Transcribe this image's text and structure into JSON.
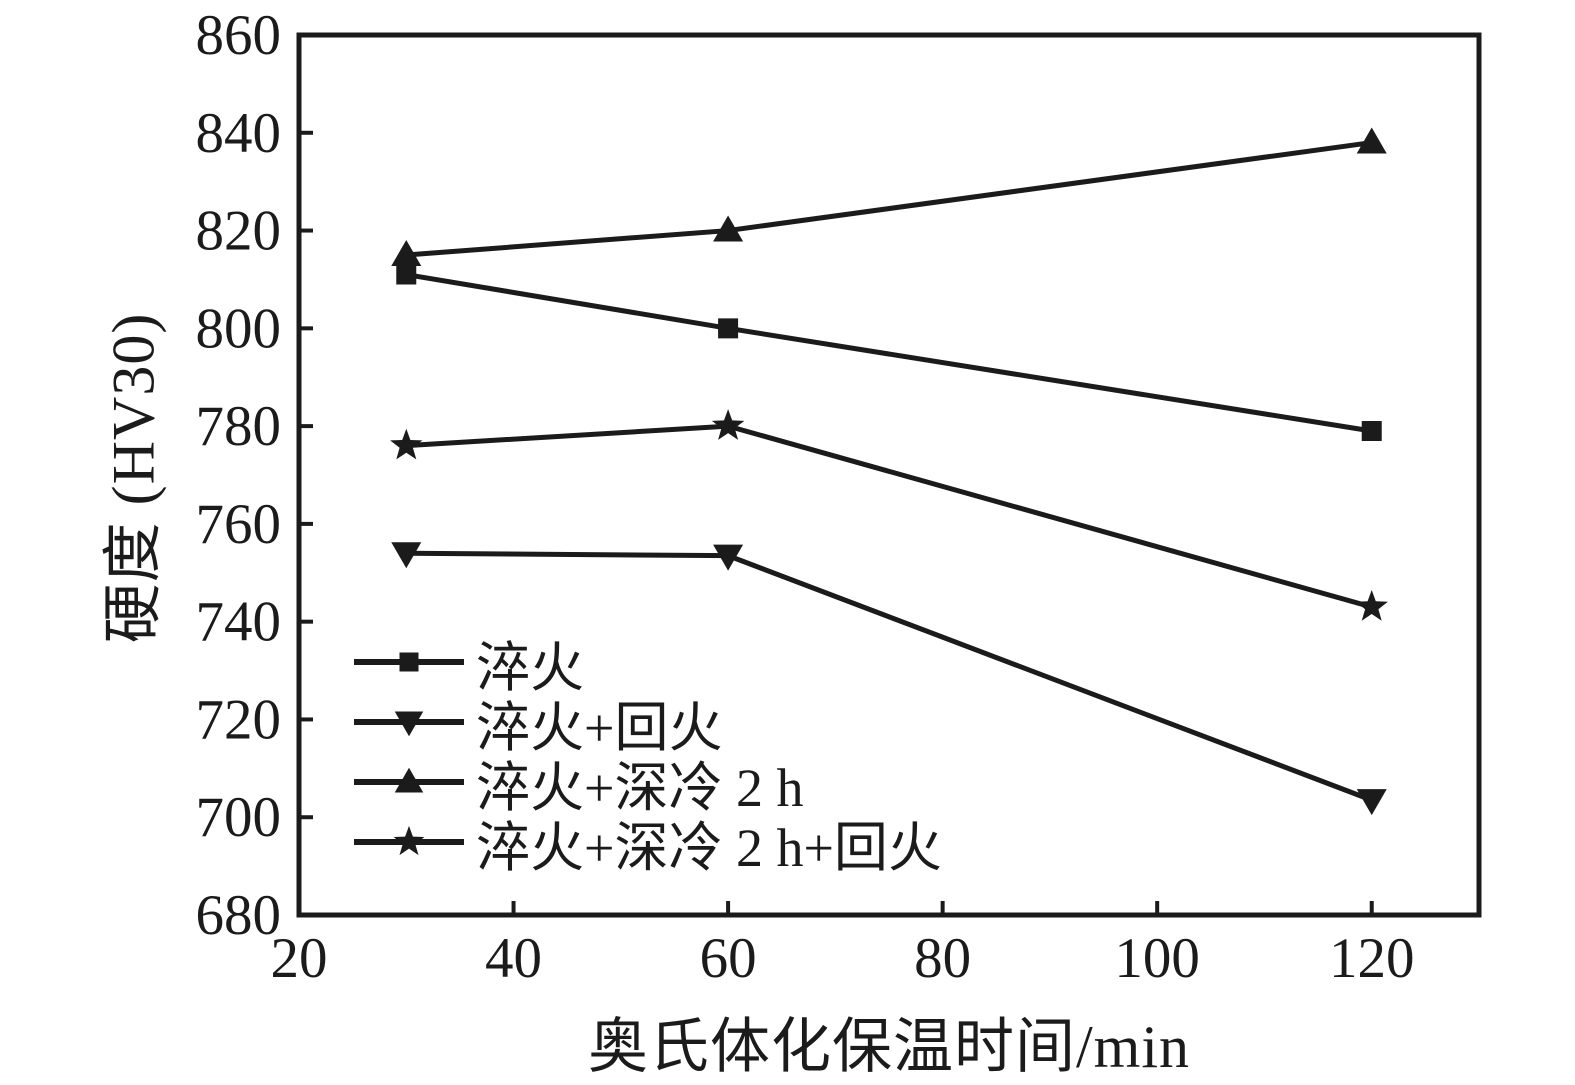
{
  "figure": {
    "background": "#ffffff",
    "ink_color": "#1b1b1b"
  },
  "chart_data": {
    "type": "line",
    "title": "",
    "xlabel": "奥氏体化保温时间/min",
    "ylabel": "硬度 (HV30)",
    "x": [
      30,
      60,
      120
    ],
    "xlim": [
      20,
      130
    ],
    "ylim": [
      680,
      860
    ],
    "xticks": [
      20,
      40,
      60,
      80,
      100,
      120
    ],
    "yticks": [
      680,
      700,
      720,
      740,
      760,
      780,
      800,
      820,
      840,
      860
    ],
    "grid": false,
    "legend_position": "inside-lower-left",
    "series": [
      {
        "name": "淬火",
        "marker": "square",
        "values": [
          811,
          800,
          779
        ]
      },
      {
        "name": "淬火+回火",
        "marker": "triangle-down",
        "values": [
          754,
          753.5,
          703.5
        ]
      },
      {
        "name": "淬火+深冷 2 h",
        "marker": "triangle-up",
        "values": [
          815,
          820,
          838
        ]
      },
      {
        "name": "淬火+深冷 2 h+回火",
        "marker": "star",
        "values": [
          776,
          780,
          743
        ]
      }
    ]
  }
}
